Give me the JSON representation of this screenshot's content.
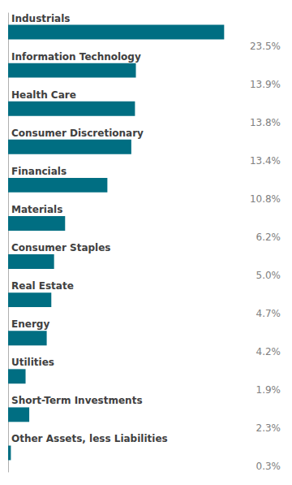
{
  "chart_data": {
    "type": "bar",
    "orientation": "horizontal",
    "categories": [
      "Industrials",
      "Information Technology",
      "Health Care",
      "Consumer Discretionary",
      "Financials",
      "Materials",
      "Consumer Staples",
      "Real Estate",
      "Energy",
      "Utilities",
      "Short-Term Investments",
      "Other Assets, less Liabilities"
    ],
    "values": [
      23.5,
      13.9,
      13.8,
      13.4,
      10.8,
      6.2,
      5.0,
      4.7,
      4.2,
      1.9,
      2.3,
      0.3
    ],
    "value_labels": [
      "23.5%",
      "13.9%",
      "13.8%",
      "13.4%",
      "10.8%",
      "6.2%",
      "5.0%",
      "4.7%",
      "4.2%",
      "1.9%",
      "2.3%",
      "0.3%"
    ],
    "data_labels": true,
    "color": "#006e82",
    "xlim": [
      0,
      30
    ],
    "grid": false
  }
}
